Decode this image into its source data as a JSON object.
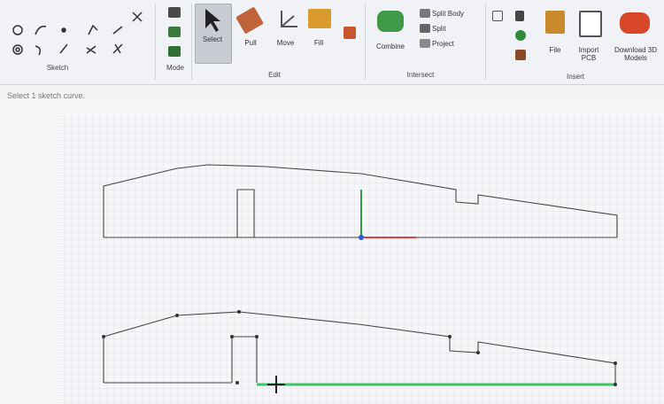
{
  "ribbon": {
    "groups": [
      {
        "label": "Sketch"
      },
      {
        "label": "Mode"
      },
      {
        "label": "Edit",
        "buttons": [
          "Select",
          "Pull",
          "Move",
          "Fill"
        ]
      },
      {
        "label": "Intersect",
        "buttons": [
          "Combine",
          "Split Body",
          "Split",
          "Project"
        ]
      },
      {
        "label": "Insert",
        "buttons": [
          "File",
          "Import PCB",
          "Download 3D Models"
        ]
      }
    ]
  },
  "status": "Select 1 sketch curve."
}
